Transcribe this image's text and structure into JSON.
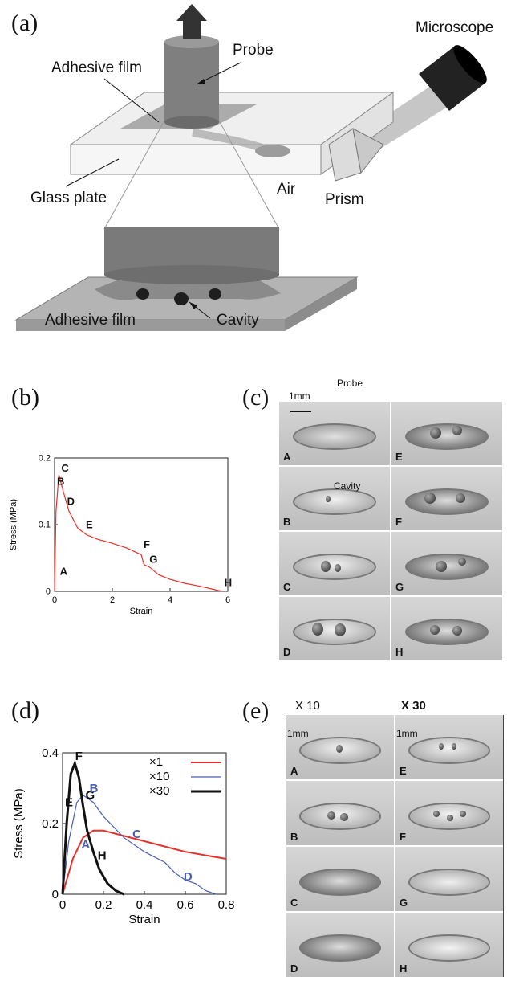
{
  "panels": {
    "a": {
      "label": "(a)"
    },
    "b": {
      "label": "(b)"
    },
    "c": {
      "label": "(c)"
    },
    "d": {
      "label": "(d)"
    },
    "e": {
      "label": "(e)"
    }
  },
  "diagram_a": {
    "labels": {
      "microscope": "Microscope",
      "probe": "Probe",
      "adhesive_film_top": "Adhesive film",
      "glass_plate": "Glass plate",
      "air": "Air",
      "prism": "Prism",
      "adhesive_film_bottom": "Adhesive film",
      "cavity": "Cavity"
    },
    "colors": {
      "probe": "#7a7a7a",
      "glass": "#e9e9e9",
      "film": "#9b9b9b",
      "microscope": "#222222"
    }
  },
  "photos_c": {
    "scale_label": "1mm",
    "probe_label": "Probe",
    "cavity_label": "Cavity",
    "frames": [
      "A",
      "E",
      "B",
      "F",
      "C",
      "G",
      "D",
      "H"
    ]
  },
  "photos_e": {
    "header_left": "X 10",
    "header_right": "X 30",
    "scale_left": "1mm",
    "scale_right": "1mm",
    "frames": [
      "A",
      "E",
      "B",
      "F",
      "C",
      "G",
      "D",
      "H"
    ]
  },
  "chart_data": [
    {
      "type": "line",
      "xlabel": "Strain",
      "ylabel": "Stress (MPa)",
      "xlim": [
        0,
        6
      ],
      "ylim": [
        0,
        0.2
      ],
      "xticks": [
        "0",
        "2",
        "4",
        "6"
      ],
      "yticks": [
        "0",
        "0.1",
        "0.2"
      ],
      "series": [
        {
          "x": [
            0,
            0.05,
            0.15,
            0.3,
            0.5,
            0.8,
            1.1,
            1.5,
            2.0,
            2.5,
            3.0,
            3.1,
            3.3,
            3.6,
            4.0,
            4.5,
            5.0,
            5.5,
            5.8
          ],
          "y": [
            0.0,
            0.12,
            0.175,
            0.15,
            0.12,
            0.095,
            0.085,
            0.078,
            0.072,
            0.065,
            0.055,
            0.04,
            0.036,
            0.025,
            0.018,
            0.012,
            0.008,
            0.003,
            0.0
          ],
          "color": "#e8302a"
        }
      ],
      "point_labels": [
        {
          "text": "A",
          "x": 0.1,
          "y": 0.02
        },
        {
          "text": "B",
          "x": 0.0,
          "y": 0.155
        },
        {
          "text": "C",
          "x": 0.15,
          "y": 0.175
        },
        {
          "text": "D",
          "x": 0.35,
          "y": 0.125
        },
        {
          "text": "E",
          "x": 1.0,
          "y": 0.09
        },
        {
          "text": "F",
          "x": 3.0,
          "y": 0.06
        },
        {
          "text": "G",
          "x": 3.2,
          "y": 0.038
        },
        {
          "text": "H",
          "x": 5.8,
          "y": 0.003
        }
      ]
    },
    {
      "type": "line",
      "xlabel": "Strain",
      "ylabel": "Stress (MPa)",
      "xlim": [
        0,
        0.8
      ],
      "ylim": [
        0,
        0.4
      ],
      "xticks": [
        "0",
        "0.2",
        "0.4",
        "0.6",
        "0.8"
      ],
      "yticks": [
        "0",
        "0.2",
        "0.4"
      ],
      "series": [
        {
          "name": "×1",
          "color": "#e8302a",
          "x": [
            0,
            0.05,
            0.1,
            0.15,
            0.2,
            0.3,
            0.4,
            0.5,
            0.6,
            0.7,
            0.8
          ],
          "y": [
            0,
            0.1,
            0.16,
            0.18,
            0.18,
            0.165,
            0.15,
            0.135,
            0.12,
            0.11,
            0.1
          ]
        },
        {
          "name": "×10",
          "color": "#4a5fb0",
          "x": [
            0,
            0.03,
            0.07,
            0.1,
            0.15,
            0.2,
            0.3,
            0.4,
            0.5,
            0.55,
            0.6,
            0.65,
            0.7,
            0.75
          ],
          "y": [
            0,
            0.15,
            0.26,
            0.28,
            0.26,
            0.22,
            0.16,
            0.12,
            0.09,
            0.06,
            0.04,
            0.03,
            0.01,
            0.0
          ]
        },
        {
          "name": "×30",
          "color": "#111111",
          "x": [
            0,
            0.02,
            0.04,
            0.06,
            0.08,
            0.1,
            0.12,
            0.15,
            0.18,
            0.22,
            0.26,
            0.3
          ],
          "y": [
            0,
            0.2,
            0.34,
            0.37,
            0.33,
            0.25,
            0.18,
            0.12,
            0.07,
            0.03,
            0.01,
            0.0
          ]
        }
      ],
      "point_labels": [
        {
          "text": "E",
          "x": 0.0,
          "y": 0.24,
          "color": "#111111"
        },
        {
          "text": "F",
          "x": 0.05,
          "y": 0.37,
          "color": "#111111"
        },
        {
          "text": "G",
          "x": 0.1,
          "y": 0.26,
          "color": "#111111"
        },
        {
          "text": "H",
          "x": 0.16,
          "y": 0.09,
          "color": "#111111"
        },
        {
          "text": "A",
          "x": 0.08,
          "y": 0.12,
          "color": "#4a5fb0"
        },
        {
          "text": "B",
          "x": 0.12,
          "y": 0.28,
          "color": "#4a5fb0"
        },
        {
          "text": "C",
          "x": 0.33,
          "y": 0.15,
          "color": "#4a5fb0"
        },
        {
          "text": "D",
          "x": 0.58,
          "y": 0.03,
          "color": "#4a5fb0"
        }
      ],
      "legend_position": "top-right"
    }
  ]
}
